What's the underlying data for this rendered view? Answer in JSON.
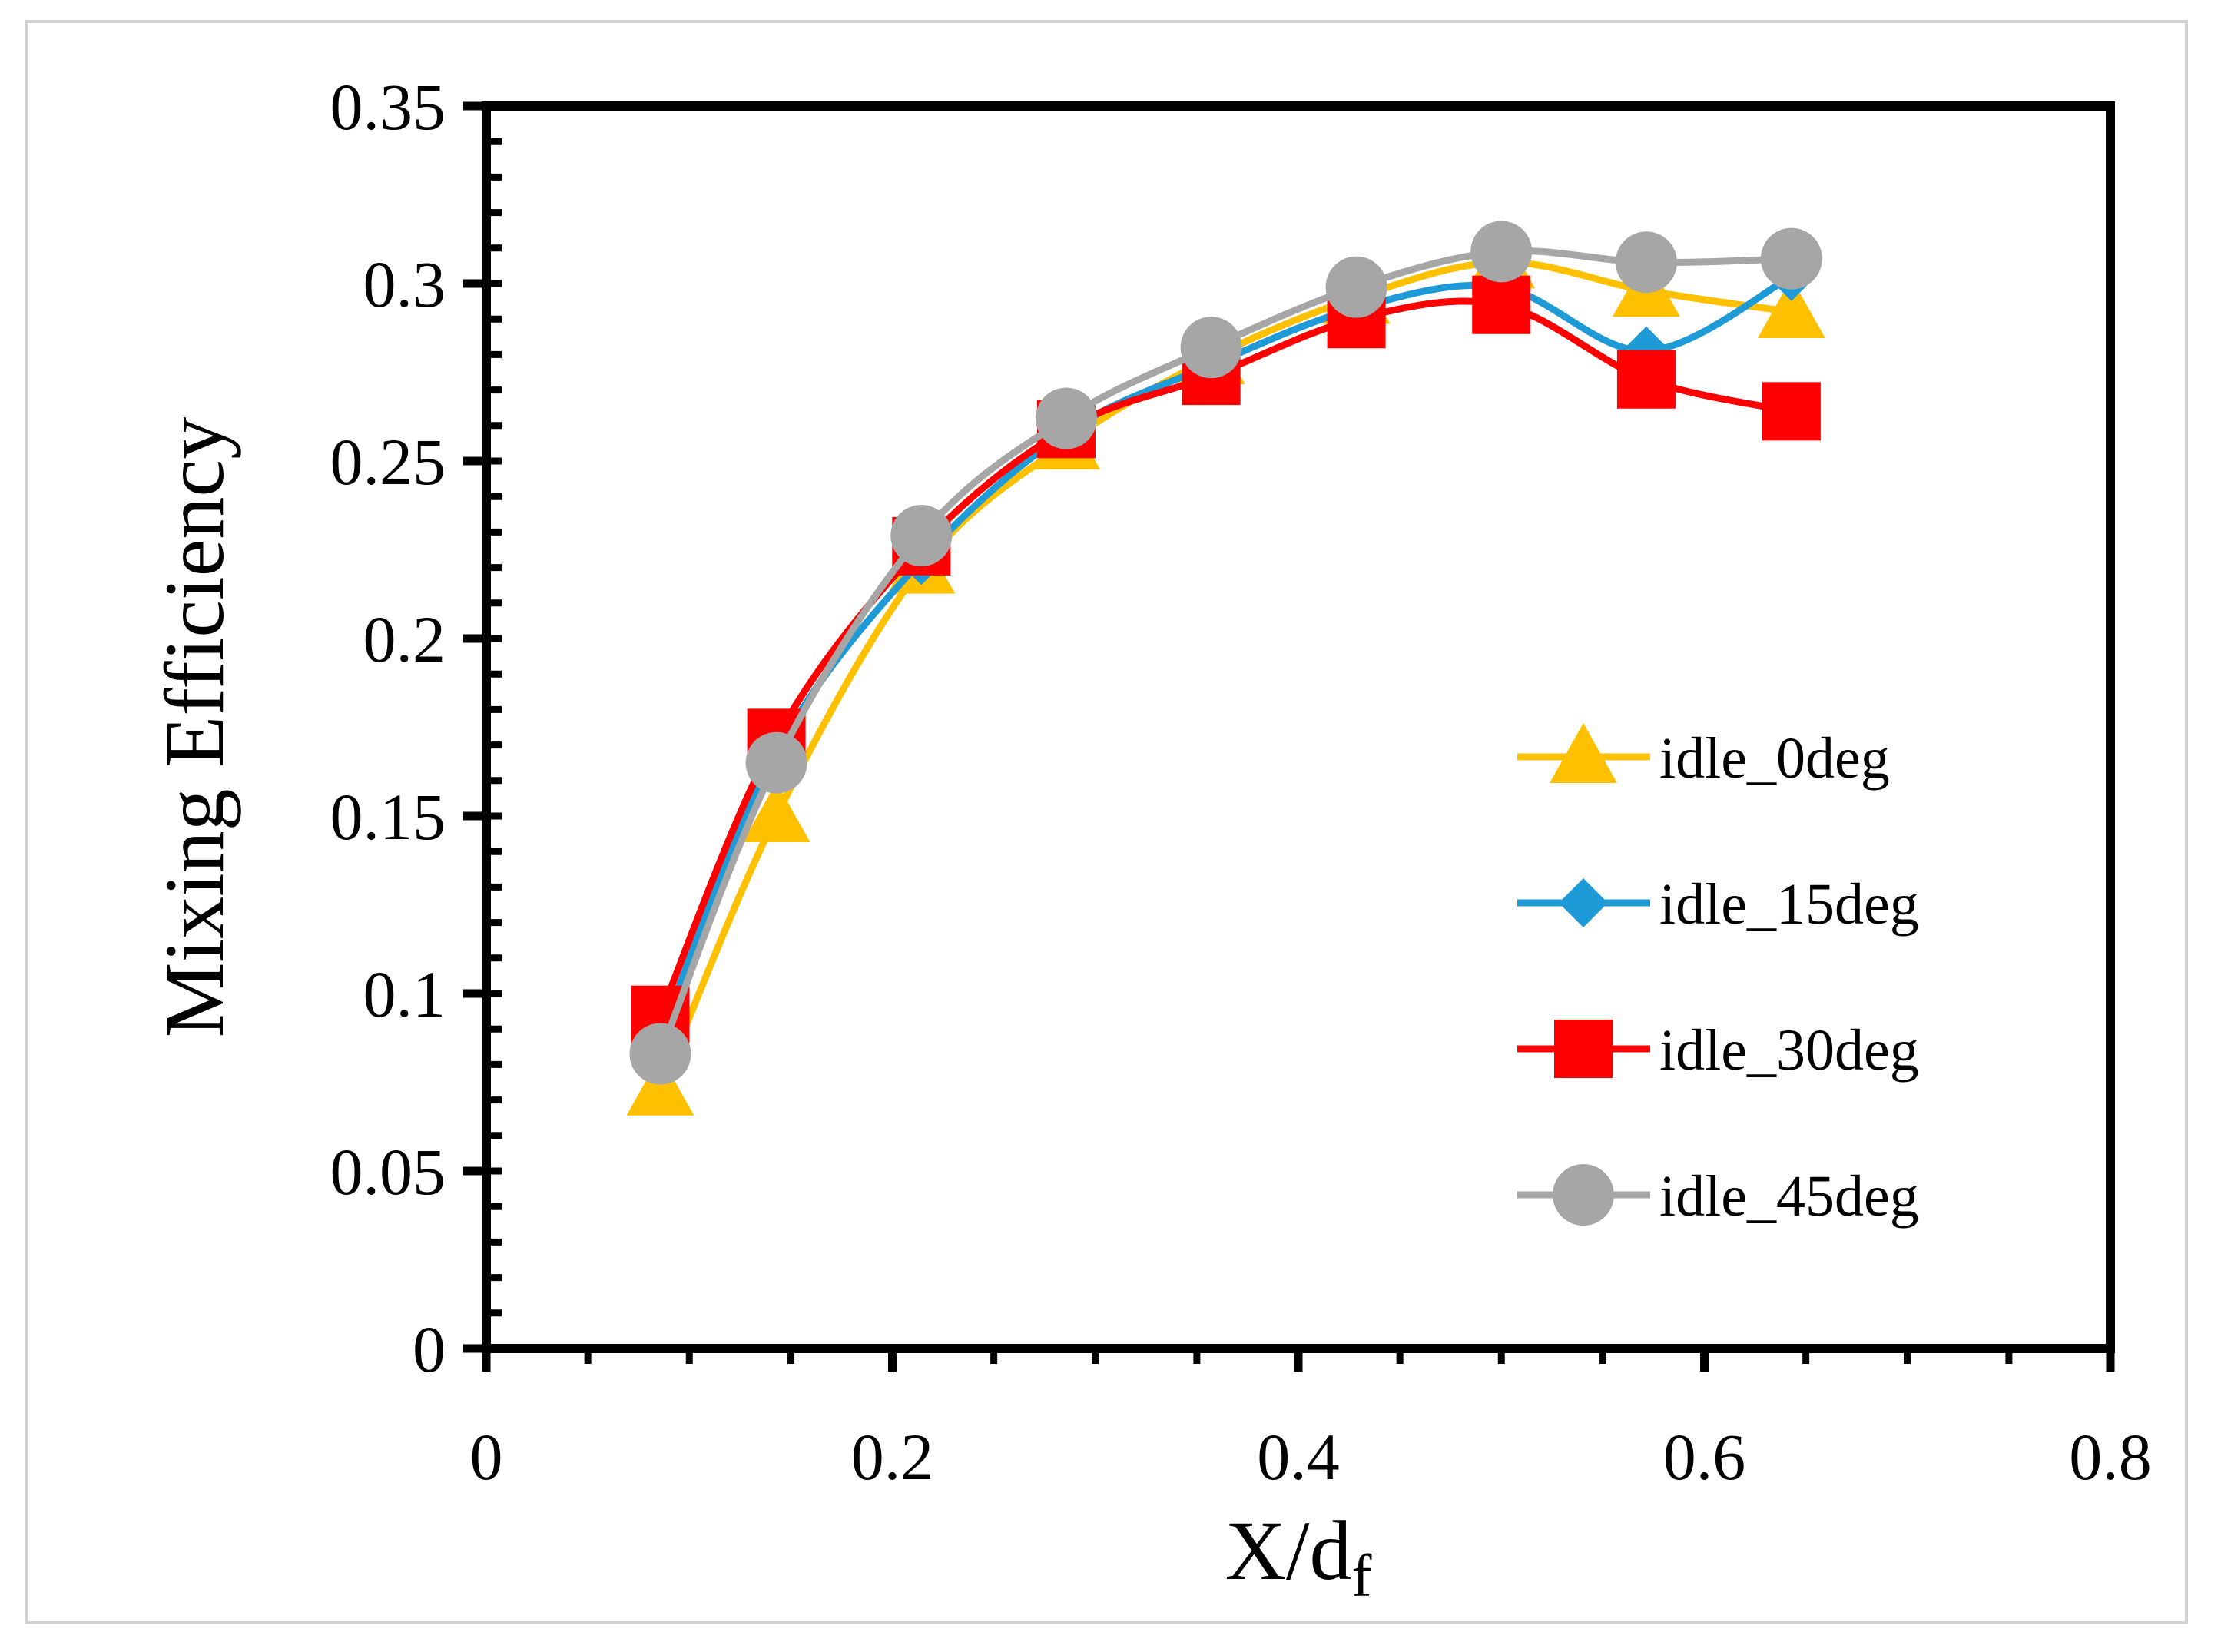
{
  "chart_data": {
    "type": "line",
    "title": "",
    "xlabel": "X/d",
    "xlabel_subscript": "f",
    "ylabel": "Mixing Efficiency",
    "xlim": [
      0,
      0.8
    ],
    "ylim": [
      0,
      0.35
    ],
    "x_ticks": [
      0,
      0.2,
      0.4,
      0.6,
      0.8
    ],
    "x_tick_labels": [
      "0",
      "0.2",
      "0.4",
      "0.6",
      "0.8"
    ],
    "y_ticks": [
      0,
      0.05,
      0.1,
      0.15,
      0.2,
      0.25,
      0.3,
      0.35
    ],
    "y_tick_labels": [
      "0",
      "0.05",
      "0.1",
      "0.15",
      "0.2",
      "0.25",
      "0.3",
      "0.35"
    ],
    "grid": false,
    "legend_position": "right",
    "x": [
      0.0857,
      0.1429,
      0.2143,
      0.2857,
      0.3571,
      0.4286,
      0.5,
      0.5714,
      0.6429
    ],
    "series": [
      {
        "name": "idle_0deg",
        "color": "#FFC000",
        "marker": "triangle",
        "values": [
          0.073,
          0.15,
          0.22,
          0.255,
          0.279,
          0.296,
          0.306,
          0.298,
          0.292
        ]
      },
      {
        "name": "idle_15deg",
        "color": "#1E9AD6",
        "marker": "diamond",
        "values": [
          0.088,
          0.168,
          0.222,
          0.258,
          0.277,
          0.293,
          0.299,
          0.281,
          0.302
        ]
      },
      {
        "name": "idle_30deg",
        "color": "#FF0000",
        "marker": "square",
        "values": [
          0.094,
          0.172,
          0.226,
          0.259,
          0.274,
          0.29,
          0.294,
          0.273,
          0.264
        ]
      },
      {
        "name": "idle_45deg",
        "color": "#A6A6A6",
        "marker": "circle",
        "values": [
          0.083,
          0.165,
          0.229,
          0.262,
          0.282,
          0.299,
          0.309,
          0.306,
          0.307
        ]
      }
    ]
  }
}
